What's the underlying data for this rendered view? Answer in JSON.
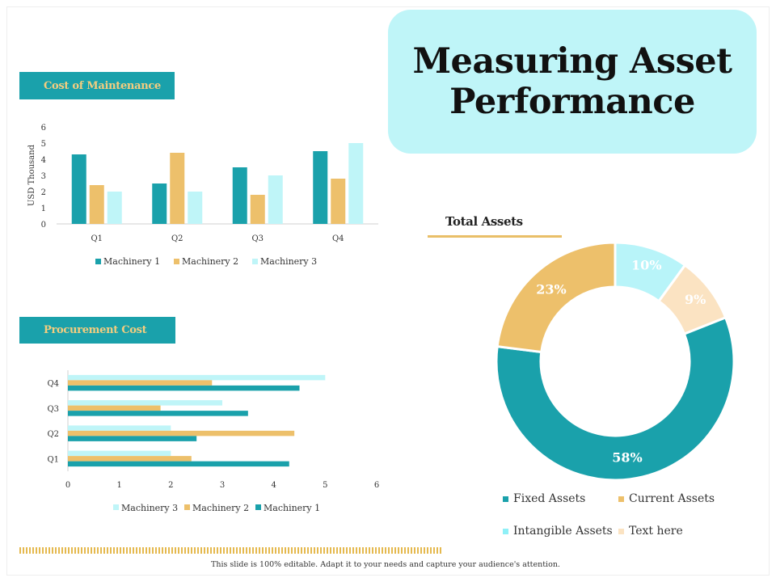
{
  "slide": {
    "title": "Measuring Asset Performance",
    "footer": "This slide is 100% editable. Adapt it to your needs and capture your audience's attention."
  },
  "colors": {
    "teal": "#1aa1ab",
    "gold": "#edc06b",
    "light_cyan": "#bff5f8",
    "peach": "#fbe3c2",
    "tag_text": "#f4cd7f"
  },
  "chart_data": [
    {
      "type": "bar",
      "name": "maintenance",
      "title": "Cost of Maintenance",
      "xlabel": "",
      "ylabel": "USD Thousand",
      "categories": [
        "Q1",
        "Q2",
        "Q3",
        "Q4"
      ],
      "series": [
        {
          "name": "Machinery 1",
          "values": [
            4.3,
            2.5,
            3.5,
            4.5
          ]
        },
        {
          "name": "Machinery 2",
          "values": [
            2.4,
            4.4,
            1.8,
            2.8
          ]
        },
        {
          "name": "Machinery 3",
          "values": [
            2.0,
            2.0,
            3.0,
            5.0
          ]
        }
      ],
      "ylim": [
        0,
        6
      ],
      "yticks": [
        "0",
        "1",
        "2",
        "3",
        "4",
        "5",
        "6"
      ],
      "legend": "bottom"
    },
    {
      "type": "bar",
      "orientation": "horizontal",
      "name": "procurement",
      "title": "Procurement Cost",
      "categories": [
        "Q1",
        "Q2",
        "Q3",
        "Q4"
      ],
      "series": [
        {
          "name": "Machinery 3",
          "values": [
            2.0,
            2.0,
            3.0,
            5.0
          ]
        },
        {
          "name": "Machinery 2",
          "values": [
            2.4,
            4.4,
            1.8,
            2.8
          ]
        },
        {
          "name": "Machinery 1",
          "values": [
            4.3,
            2.5,
            3.5,
            4.5
          ]
        }
      ],
      "xlim": [
        0,
        6
      ],
      "xticks": [
        "0",
        "1",
        "2",
        "3",
        "4",
        "5",
        "6"
      ],
      "legend": "bottom"
    },
    {
      "type": "pie",
      "variant": "donut",
      "name": "total_assets",
      "title": "Total Assets",
      "slices": [
        {
          "label": "Intangible Assets",
          "value": 10,
          "display": "10%"
        },
        {
          "label": "Text here",
          "value": 9,
          "display": "9%"
        },
        {
          "label": "Fixed Assets",
          "value": 58,
          "display": "58%"
        },
        {
          "label": "Current Assets",
          "value": 23,
          "display": "23%"
        }
      ],
      "legend": "bottom"
    }
  ]
}
